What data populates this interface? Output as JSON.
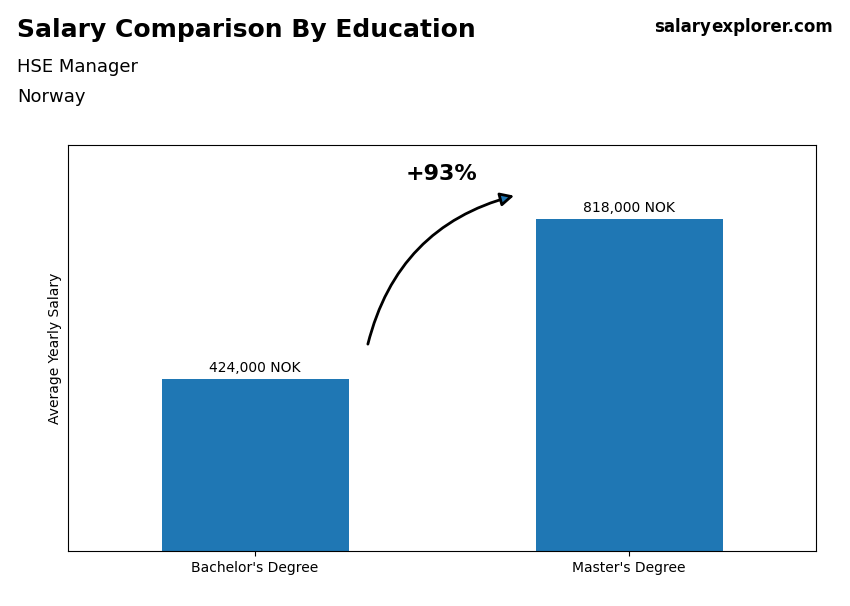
{
  "chart_data": {
    "type": "bar",
    "title": "Salary Comparison By Education",
    "subtitle": [
      "HSE Manager",
      "Norway"
    ],
    "categories": [
      "Bachelor's Degree",
      "Master's Degree"
    ],
    "values": [
      424000,
      818000
    ],
    "value_labels": [
      "424,000 NOK",
      "818,000 NOK"
    ],
    "data_labels": true,
    "ylabel": "Average Yearly Salary",
    "ylim": [
      0,
      1000000
    ],
    "tick_labels": "x",
    "grid": false,
    "annotations": [
      "+93%",
      "salary",
      "explorer.com"
    ]
  }
}
